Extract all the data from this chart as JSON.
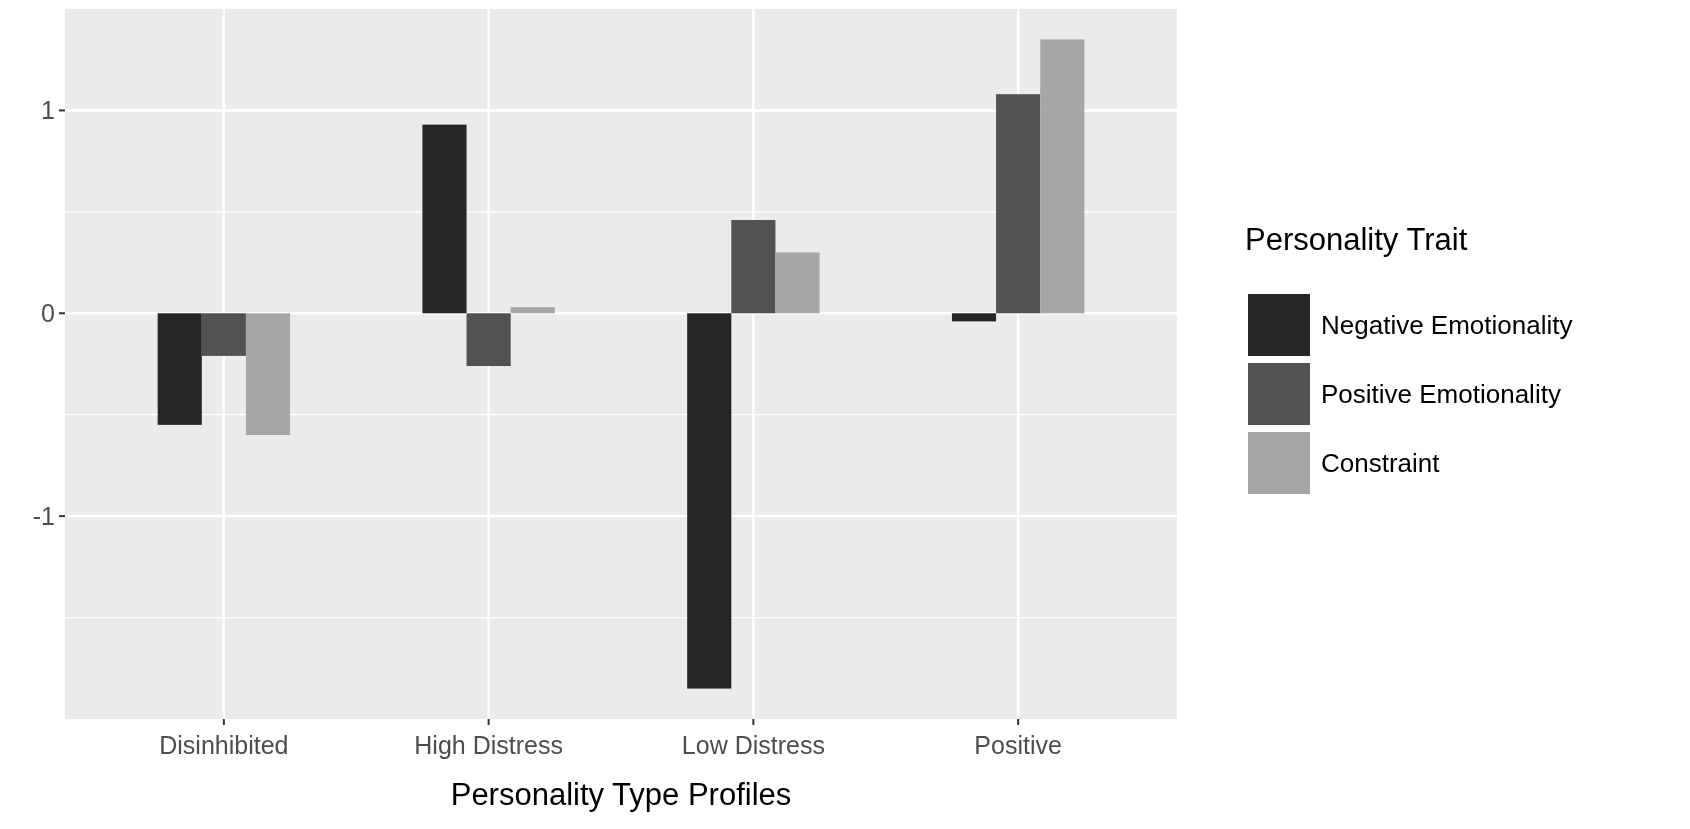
{
  "chart_data": {
    "type": "bar",
    "xlabel": "Personality Type Profiles",
    "legend_title": "Personality Trait",
    "categories": [
      "Disinhibited",
      "High Distress",
      "Low Distress",
      "Positive"
    ],
    "series": [
      {
        "name": "Negative Emotionality",
        "color": "#262626",
        "values": [
          -0.55,
          0.93,
          -1.85,
          -0.04
        ]
      },
      {
        "name": "Positive Emotionality",
        "color": "#525252",
        "values": [
          -0.21,
          -0.26,
          0.46,
          1.08
        ]
      },
      {
        "name": "Constraint",
        "color": "#a6a6a6",
        "values": [
          -0.6,
          0.03,
          0.3,
          1.35
        ]
      }
    ],
    "ylim": [
      -2.0,
      1.5
    ],
    "yticks": [
      {
        "value": -1.5,
        "label": null
      },
      -1,
      {
        "value": -0.5,
        "label": null
      },
      0,
      {
        "value": 0.5,
        "label": null
      },
      1
    ],
    "grid": true,
    "legend": "right"
  }
}
